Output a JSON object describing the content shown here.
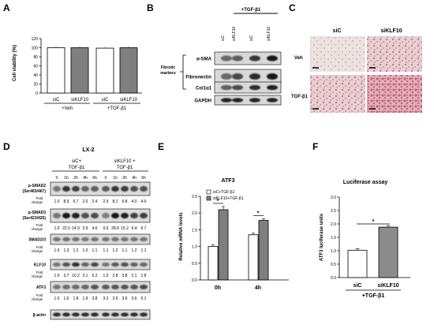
{
  "panels": {
    "A": {
      "label": "A",
      "ylabel": "Cell viability (%)",
      "yticks": [
        "0",
        "20",
        "40",
        "60",
        "80",
        "100",
        "120"
      ],
      "bars": [
        {
          "name": "siC",
          "value": 100,
          "color": "#ffffff"
        },
        {
          "name": "siKLF10",
          "value": 100,
          "color": "#7f7f7f"
        },
        {
          "name": "siC",
          "value": 99,
          "color": "#ffffff"
        },
        {
          "name": "siKLF10",
          "value": 100,
          "color": "#7f7f7f"
        }
      ],
      "groups": [
        "+Veh",
        "+TGF-β1"
      ]
    },
    "B": {
      "label": "B",
      "treatment": "+TGF-β1",
      "lanes": [
        "siC",
        "siKLF10",
        "siC",
        "siKLF10"
      ],
      "group_label_line1": "Fibrotic",
      "group_label_line2": "markers",
      "rows": [
        "α-SMA",
        "Fibronectin",
        "Col1α1",
        "GAPDH"
      ]
    },
    "C": {
      "label": "C",
      "cols": [
        "siC",
        "siKLF10"
      ],
      "rows": [
        "Veh",
        "TGF-β1"
      ]
    },
    "D": {
      "label": "D",
      "cell_line": "LX-2",
      "group1_line1": "siC+",
      "group1_line2": "TGF-β1",
      "group2_line1": "siKLF10 +",
      "group2_line2": "TGF-β1",
      "times": [
        "0",
        "1h",
        "2h",
        "4h",
        "6h"
      ],
      "fold_label_1": "Fold",
      "fold_label_2": "change",
      "rows": [
        {
          "name1": "p-SMAD2",
          "name2": "(Ser465/467)",
          "fold": [
            "1.0",
            "8.9",
            "6.7",
            "2.0",
            "2.4",
            "2.9",
            "8.1",
            "6.8",
            "4.0",
            "4.0"
          ]
        },
        {
          "name1": "p-SMAD3",
          "name2": "(Ser423/425)",
          "fold": [
            "1.0",
            "22.0",
            "14.9",
            "3.9",
            "4.6",
            "0.6",
            "28.8",
            "15.2",
            "6.4",
            "6.7"
          ]
        },
        {
          "name1": "SMAD2/3",
          "name2": "",
          "fold": [
            "1.0",
            "1.3",
            "1.2",
            "1.0",
            "1.1",
            "1.1",
            "1.2",
            "1.1",
            "1.2",
            "1.1"
          ]
        },
        {
          "name1": "KLF10",
          "name2": "",
          "fold": [
            "1.0",
            "3.7",
            "10.2",
            "2.1",
            "5.2",
            "1.0",
            "2.8",
            "3.8",
            "2.1",
            "1.8"
          ]
        },
        {
          "name1": "ATF3",
          "name2": "",
          "fold": [
            "1.0",
            "1.6",
            "1.8",
            "1.9",
            "3.8",
            "3.2",
            "3.5",
            "3.6",
            "3.6",
            "5.1"
          ]
        },
        {
          "name1": "β-actin",
          "name2": "",
          "fold": []
        }
      ]
    },
    "E": {
      "label": "E",
      "title": "ATF3",
      "ylabel": "Relative mRNA levels",
      "yticks": [
        "0.0",
        "0.5",
        "1.0",
        "1.5",
        "2.0",
        "2.5"
      ],
      "legend": [
        "siC+TGF-β1",
        "siKLF10+TGF-β1"
      ],
      "categories": [
        "0h",
        "4h"
      ],
      "series": [
        {
          "name": "siC+TGF-β1",
          "values": [
            1.0,
            1.35
          ],
          "color": "#ffffff"
        },
        {
          "name": "siKLF10+TGF-β1",
          "values": [
            2.1,
            1.78
          ],
          "color": "#7f7f7f"
        }
      ],
      "sig": [
        "*",
        "*"
      ]
    },
    "F": {
      "label": "F",
      "title": "Luciferase assay",
      "ylabel": "ATF3 luciferase units",
      "yticks": [
        "0.0",
        "0.5",
        "1.0",
        "1.5",
        "2.0",
        "2.5",
        "3.0"
      ],
      "bars": [
        {
          "name": "siC",
          "value": 1.02,
          "color": "#ffffff"
        },
        {
          "name": "siKLF10",
          "value": 1.88,
          "color": "#8c8c8c"
        }
      ],
      "group": "+TGF-β1",
      "sig": "*"
    }
  }
}
